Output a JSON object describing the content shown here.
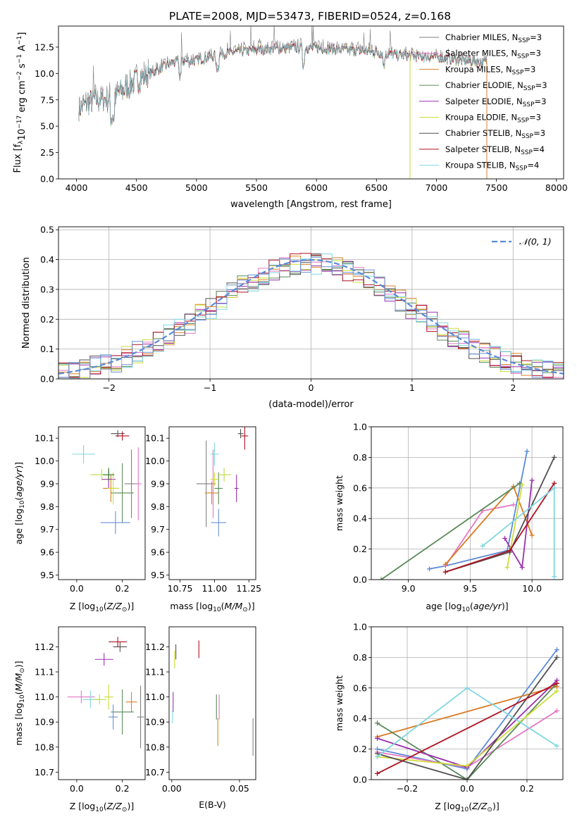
{
  "figure": {
    "title": "PLATE=2008, MJD=53473, FIBERID=0524, z=0.168",
    "colors": [
      "#808080",
      "#e377c2",
      "#d9822b",
      "#5a8a5a",
      "#9b30b0",
      "#cddc39",
      "#505050",
      "#b01020",
      "#7fd7e0",
      "#6b8fd6",
      "#bcdc40",
      "#2e7d32"
    ]
  },
  "chart_data": [
    {
      "id": "spectrum",
      "type": "line",
      "xlabel": "wavelength [Angstrom, rest frame]",
      "ylabel": "Flux [f",
      "xlim": [
        3850,
        8060
      ],
      "ylim": [
        0,
        14.5
      ],
      "xticks": [
        "4000",
        "4500",
        "5000",
        "5500",
        "6000",
        "6500",
        "7000",
        "7500",
        "8000"
      ],
      "yticks": [
        "0.0",
        "2.5",
        "5.0",
        "7.5",
        "10.0",
        "12.5"
      ],
      "legend_placement": "right",
      "x_range": [
        4020,
        7420
      ],
      "continuum_wavelength": [
        4020,
        4150,
        4300,
        4500,
        4800,
        5000,
        5200,
        5400,
        5600,
        5800,
        6000,
        6200,
        6400,
        6600,
        6800,
        7000,
        7200,
        7420
      ],
      "continuum_flux": [
        6.8,
        7.6,
        7.8,
        9.5,
        11.2,
        11.4,
        12.0,
        12.3,
        12.5,
        12.6,
        12.6,
        12.4,
        12.3,
        12.0,
        11.8,
        11.7,
        11.4,
        11.2
      ],
      "series": [
        {
          "name": "Chabrier MILES, N",
          "sub": "SSP",
          "suffix": "=3"
        },
        {
          "name": "Salpeter MILES, N",
          "sub": "SSP",
          "suffix": "=3"
        },
        {
          "name": "Kroupa MILES, N",
          "sub": "SSP",
          "suffix": "=3"
        },
        {
          "name": "Chabrier ELODIE, N",
          "sub": "SSP",
          "suffix": "=3"
        },
        {
          "name": "Salpeter ELODIE, N",
          "sub": "SSP",
          "suffix": "=3"
        },
        {
          "name": "Kroupa ELODIE, N",
          "sub": "SSP",
          "suffix": "=3"
        },
        {
          "name": "Chabrier STELIB, N",
          "sub": "SSP",
          "suffix": "=3"
        },
        {
          "name": "Salpeter STELIB, N",
          "sub": "SSP",
          "suffix": "=4"
        },
        {
          "name": "Kroupa STELIB, N",
          "sub": "SSP",
          "suffix": "=4"
        }
      ]
    },
    {
      "id": "residuals",
      "type": "bar",
      "xlabel": "(data-model)/error",
      "ylabel": "Normed distribution",
      "xlim": [
        -2.5,
        2.5
      ],
      "ylim": [
        0,
        0.51
      ],
      "xticks": [
        "−2",
        "−1",
        "0",
        "1",
        "2"
      ],
      "yticks": [
        "0.0",
        "0.1",
        "0.2",
        "0.3",
        "0.4",
        "0.5"
      ],
      "grid": true,
      "legend": "𝒩(0, 1)",
      "legend_placement": "top-right",
      "bins": 48
    },
    {
      "id": "age_vs_Z",
      "type": "scatter",
      "xlabel": "Z [log",
      "ylabel": "age  [log",
      "xlim": [
        -0.08,
        0.3
      ],
      "ylim": [
        9.48,
        10.15
      ],
      "xticks": [
        "0.0",
        "0.2"
      ],
      "yticks": [
        "9.5",
        "9.6",
        "9.7",
        "9.8",
        "9.9",
        "10.0",
        "10.1"
      ],
      "points": [
        {
          "x": 0.24,
          "y": 9.9,
          "dx": 0.06,
          "dy": 0.3
        },
        {
          "x": 0.27,
          "y": 9.9,
          "dx": 0.03,
          "dy": 0.32
        },
        {
          "x": 0.15,
          "y": 9.88,
          "dx": 0.07,
          "dy": 0.12
        },
        {
          "x": 0.2,
          "y": 9.86,
          "dx": 0.1,
          "dy": 0.26
        },
        {
          "x": 0.14,
          "y": 9.92,
          "dx": 0.06,
          "dy": 0.08
        },
        {
          "x": 0.16,
          "y": 9.88,
          "dx": 0.05,
          "dy": 0.14
        },
        {
          "x": 0.18,
          "y": 10.12,
          "dx": 0.06,
          "dy": 0.03
        },
        {
          "x": 0.2,
          "y": 10.11,
          "dx": 0.06,
          "dy": 0.04
        },
        {
          "x": 0.03,
          "y": 10.03,
          "dx": 0.1,
          "dy": 0.08
        },
        {
          "x": 0.17,
          "y": 9.73,
          "dx": 0.13,
          "dy": 0.1
        },
        {
          "x": 0.11,
          "y": 9.94,
          "dx": 0.1,
          "dy": 0.05
        },
        {
          "x": 0.14,
          "y": 9.94,
          "dx": 0.05,
          "dy": 0.06
        }
      ]
    },
    {
      "id": "age_vs_mass",
      "type": "scatter",
      "xlabel": "mass [log",
      "ylabel": "",
      "xlim": [
        10.67,
        11.3
      ],
      "ylim": [
        9.48,
        10.15
      ],
      "xticks": [
        "10.75",
        "11.00",
        "11.25"
      ],
      "yticks": [
        "9.5",
        "9.6",
        "9.7",
        "9.8",
        "9.9",
        "10.0",
        "10.1"
      ],
      "points": [
        {
          "x": 10.94,
          "y": 9.9,
          "dx": 0.14,
          "dy": 0.38
        },
        {
          "x": 10.99,
          "y": 9.9,
          "dx": 0.03,
          "dy": 0.3
        },
        {
          "x": 10.98,
          "y": 9.86,
          "dx": 0.1,
          "dy": 0.1
        },
        {
          "x": 11.03,
          "y": 9.88,
          "dx": 0.06,
          "dy": 0.14
        },
        {
          "x": 11.16,
          "y": 9.88,
          "dx": 0.03,
          "dy": 0.12
        },
        {
          "x": 11.0,
          "y": 9.92,
          "dx": 0.06,
          "dy": 0.06
        },
        {
          "x": 11.19,
          "y": 10.12,
          "dx": 0.04,
          "dy": 0.04
        },
        {
          "x": 11.22,
          "y": 10.11,
          "dx": 0.05,
          "dy": 0.12
        },
        {
          "x": 11.0,
          "y": 10.03,
          "dx": 0.06,
          "dy": 0.1
        },
        {
          "x": 11.03,
          "y": 9.73,
          "dx": 0.11,
          "dy": 0.12
        },
        {
          "x": 11.07,
          "y": 9.94,
          "dx": 0.1,
          "dy": 0.06
        }
      ]
    },
    {
      "id": "mass_weight_vs_age",
      "type": "line",
      "xlabel": "age  [log",
      "ylabel": "mass weight",
      "xlim": [
        8.7,
        10.25
      ],
      "ylim": [
        0,
        1
      ],
      "xticks": [
        "9.0",
        "9.5",
        "10.0"
      ],
      "yticks": [
        "0.0",
        "0.2",
        "0.4",
        "0.6",
        "0.8",
        "1.0"
      ],
      "grid": true,
      "series": [
        {
          "x": [
            9.17,
            9.3,
            9.8,
            9.96
          ],
          "y": [
            0.07,
            0.09,
            0.19,
            0.84
          ]
        },
        {
          "x": [
            9.3,
            9.6,
            9.85
          ],
          "y": [
            0.09,
            0.45,
            0.49
          ]
        },
        {
          "x": [
            9.3,
            9.85,
            10.0
          ],
          "y": [
            0.1,
            0.61,
            0.29
          ]
        },
        {
          "x": [
            8.78,
            9.9
          ],
          "y": [
            0.0,
            0.63
          ]
        },
        {
          "x": [
            9.78,
            9.92,
            10.0
          ],
          "y": [
            0.27,
            0.08,
            0.65
          ]
        },
        {
          "x": [
            9.8,
            9.92
          ],
          "y": [
            0.08,
            0.62
          ]
        },
        {
          "x": [
            9.3,
            9.82,
            10.18
          ],
          "y": [
            0.05,
            0.18,
            0.8
          ]
        },
        {
          "x": [
            9.3,
            9.82,
            10.18
          ],
          "y": [
            0.05,
            0.19,
            0.63
          ]
        },
        {
          "x": [
            9.6,
            10.18,
            10.18
          ],
          "y": [
            0.22,
            0.6,
            0.02
          ]
        }
      ]
    },
    {
      "id": "mass_vs_Z",
      "type": "scatter",
      "xlabel": "Z [log",
      "ylabel": "mass [log",
      "xlim": [
        -0.08,
        0.3
      ],
      "ylim": [
        10.67,
        11.28
      ],
      "xticks": [
        "0.0",
        "0.2"
      ],
      "yticks": [
        "10.7",
        "10.8",
        "10.9",
        "11.0",
        "11.1",
        "11.2"
      ],
      "points": [
        {
          "x": 0.28,
          "y": 10.92,
          "dx": 0.03,
          "dy": 0.25
        },
        {
          "x": 0.02,
          "y": 11.0,
          "dx": 0.12,
          "dy": 0.05
        },
        {
          "x": 0.24,
          "y": 10.98,
          "dx": 0.05,
          "dy": 0.08
        },
        {
          "x": 0.2,
          "y": 10.94,
          "dx": 0.1,
          "dy": 0.18
        },
        {
          "x": 0.12,
          "y": 11.15,
          "dx": 0.08,
          "dy": 0.05
        },
        {
          "x": 0.14,
          "y": 11.0,
          "dx": 0.04,
          "dy": 0.1
        },
        {
          "x": 0.19,
          "y": 11.2,
          "dx": 0.06,
          "dy": 0.04
        },
        {
          "x": 0.18,
          "y": 11.22,
          "dx": 0.08,
          "dy": 0.04
        },
        {
          "x": 0.06,
          "y": 10.99,
          "dx": 0.07,
          "dy": 0.07
        },
        {
          "x": 0.16,
          "y": 10.92,
          "dx": 0.04,
          "dy": 0.1
        },
        {
          "x": 0.1,
          "y": 10.99,
          "dx": 0.06,
          "dy": 0.04
        }
      ]
    },
    {
      "id": "mass_vs_EBV",
      "type": "scatter",
      "xlabel": "E(B-V)",
      "ylabel": "",
      "xlim": [
        -0.002,
        0.062
      ],
      "ylim": [
        10.67,
        11.28
      ],
      "xticks": [
        "0.00",
        "0.05"
      ],
      "yticks": [
        "10.7",
        "10.8",
        "10.9",
        "11.0",
        "11.1",
        "11.2"
      ],
      "points": [
        {
          "x": 0.06,
          "y": 10.84,
          "dx": 0,
          "dy": 0.15
        },
        {
          "x": 0.035,
          "y": 10.96,
          "dx": 0,
          "dy": 0.1
        },
        {
          "x": 0.034,
          "y": 10.86,
          "dx": 0,
          "dy": 0.11
        },
        {
          "x": 0.033,
          "y": 10.96,
          "dx": 0,
          "dy": 0.1
        },
        {
          "x": 0.001,
          "y": 10.98,
          "dx": 0,
          "dy": 0.08
        },
        {
          "x": 0.002,
          "y": 11.15,
          "dx": 0,
          "dy": 0.07
        },
        {
          "x": 0.003,
          "y": 11.18,
          "dx": 0,
          "dy": 0.06
        },
        {
          "x": 0.02,
          "y": 11.19,
          "dx": 0,
          "dy": 0.07
        },
        {
          "x": 0.0005,
          "y": 10.92,
          "dx": 0,
          "dy": 0.05
        }
      ]
    },
    {
      "id": "mass_weight_vs_Z",
      "type": "line",
      "xlabel": "Z [log",
      "ylabel": "mass weight",
      "xlim": [
        -0.32,
        0.32
      ],
      "ylim": [
        0,
        1
      ],
      "xticks": [
        "−0.2",
        "0.0",
        "0.2"
      ],
      "yticks": [
        "0.0",
        "0.2",
        "0.4",
        "0.6",
        "0.8",
        "1.0"
      ],
      "grid": true,
      "series": [
        {
          "x": [
            -0.3,
            0.0,
            0.3
          ],
          "y": [
            0.2,
            0.07,
            0.85
          ]
        },
        {
          "x": [
            -0.3,
            0.0,
            0.3
          ],
          "y": [
            0.18,
            0.08,
            0.45
          ]
        },
        {
          "x": [
            -0.3,
            0.3
          ],
          "y": [
            0.28,
            0.61
          ]
        },
        {
          "x": [
            -0.3,
            0.0,
            0.3
          ],
          "y": [
            0.37,
            0.0,
            0.63
          ]
        },
        {
          "x": [
            -0.3,
            0.0,
            0.3
          ],
          "y": [
            0.27,
            0.08,
            0.65
          ]
        },
        {
          "x": [
            -0.3,
            0.0,
            0.3
          ],
          "y": [
            0.15,
            0.09,
            0.58
          ]
        },
        {
          "x": [
            -0.3,
            0.0,
            0.3
          ],
          "y": [
            0.17,
            0.0,
            0.8
          ]
        },
        {
          "x": [
            -0.3,
            0.3
          ],
          "y": [
            0.04,
            0.63
          ]
        },
        {
          "x": [
            -0.3,
            0.0,
            0.3
          ],
          "y": [
            0.15,
            0.6,
            0.22
          ]
        }
      ]
    }
  ]
}
